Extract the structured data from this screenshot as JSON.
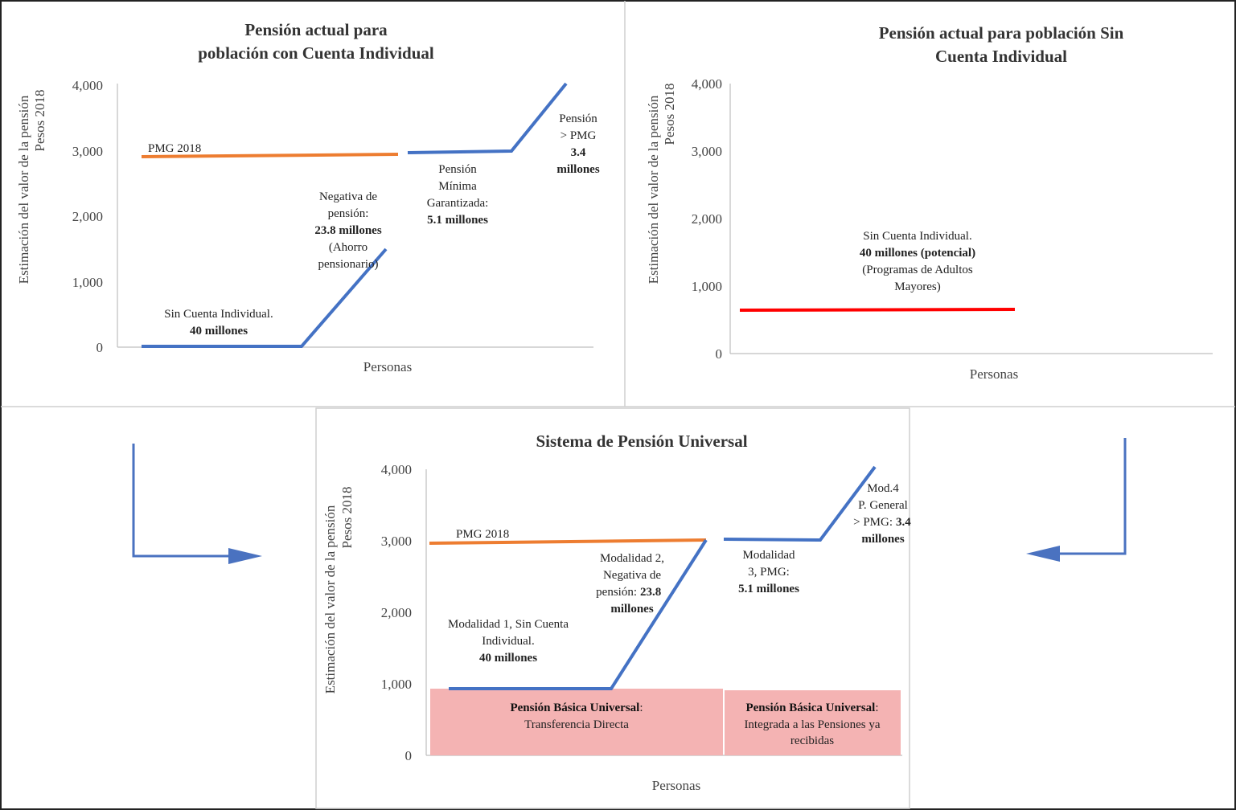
{
  "chart_data": [
    {
      "type": "line",
      "title_lines": [
        "Pensión actual para",
        "población con Cuenta Individual"
      ],
      "ylabel_lines": [
        "Estimación del valor de la pensión",
        "Pesos 2018"
      ],
      "xlabel": "Personas",
      "ylim": [
        0,
        4000
      ],
      "y_ticks": [
        "0",
        "1,000",
        "2,000",
        "3,000",
        "4,000"
      ],
      "series": [
        {
          "name": "PMG 2018",
          "color": "#ED7D31",
          "points": [
            [
              0.05,
              2900
            ],
            [
              0.58,
              2940
            ]
          ]
        },
        {
          "color": "#4472C4",
          "points": [
            [
              0.05,
              0
            ],
            [
              0.39,
              0
            ],
            [
              0.56,
              1500
            ]
          ]
        },
        {
          "color": "#4472C4",
          "points": [
            [
              0.6,
              2960
            ],
            [
              0.82,
              2980
            ],
            [
              0.95,
              4000
            ]
          ]
        }
      ],
      "annotations": [
        {
          "lines": [
            "Sin Cuenta Individual."
          ],
          "bold": [
            "40 millones"
          ]
        },
        {
          "lines": [
            "Negativa de",
            "pensión:"
          ],
          "bold": [
            "23.8 millones"
          ],
          "after": [
            "(Ahorro",
            "pensionario)"
          ]
        },
        {
          "lines": [
            "Pensión",
            "Mínima",
            "Garantizada:"
          ],
          "bold": [
            "5.1 millones"
          ]
        },
        {
          "lines": [
            "Pensión",
            "> PMG"
          ],
          "bold": [
            "3.4",
            "millones"
          ]
        }
      ]
    },
    {
      "type": "line",
      "title_lines": [
        "Pensión actual para población Sin",
        "Cuenta Individual"
      ],
      "ylabel_lines": [
        "Estimación del valor de la pensión",
        "Pesos 2018"
      ],
      "xlabel": "Personas",
      "ylim": [
        0,
        4000
      ],
      "y_ticks": [
        "0",
        "1,000",
        "2,000",
        "3,000",
        "4,000"
      ],
      "series": [
        {
          "color": "#FF0000",
          "points": [
            [
              0.02,
              650
            ],
            [
              0.58,
              650
            ]
          ]
        }
      ],
      "annotations": [
        {
          "lines": [
            "Sin Cuenta Individual."
          ],
          "bold": [
            "40 millones (potencial)"
          ],
          "after": [
            "(Programas  de Adultos",
            "Mayores)"
          ]
        }
      ]
    },
    {
      "type": "line",
      "title_lines": [
        "Sistema de Pensión Universal"
      ],
      "ylabel_lines": [
        "Estimación del valor de la pensión",
        "Pesos 2018"
      ],
      "xlabel": "Personas",
      "ylim": [
        0,
        4000
      ],
      "y_ticks": [
        "0",
        "1,000",
        "2,000",
        "3,000",
        "4,000"
      ],
      "series": [
        {
          "name": "PMG 2018",
          "color": "#ED7D31",
          "points": [
            [
              0.01,
              2960
            ],
            [
              0.6,
              3000
            ]
          ]
        },
        {
          "color": "#4472C4",
          "points": [
            [
              0.04,
              930
            ],
            [
              0.39,
              930
            ],
            [
              0.6,
              3000
            ]
          ]
        },
        {
          "color": "#4472C4",
          "points": [
            [
              0.63,
              3020
            ],
            [
              0.8,
              3020
            ],
            [
              0.93,
              4000
            ]
          ]
        }
      ],
      "bands": [
        {
          "bold": "Pensión Básica Universal",
          "text": [
            "Transferencia Directa"
          ],
          "color": "#F4B3B3",
          "x": [
            0.0,
            0.6
          ],
          "y": [
            0,
            930
          ]
        },
        {
          "bold": "Pensión Básica Universal",
          "text": [
            "Integrada a las Pensiones ya",
            "recibidas"
          ],
          "color": "#F4B3B3",
          "x": [
            0.61,
            0.98
          ],
          "y": [
            0,
            930
          ]
        }
      ],
      "annotations": [
        {
          "lines": [
            "Modalidad 1, Sin Cuenta",
            "Individual."
          ],
          "bold": [
            "40 millones"
          ]
        },
        {
          "lines": [
            "Modalidad 2,",
            "Negativa de",
            "pensión:"
          ],
          "bold": [
            "23.8",
            "millones"
          ]
        },
        {
          "lines": [
            "Modalidad",
            "3, PMG:"
          ],
          "bold": [
            "5.1 millones"
          ]
        },
        {
          "lines": [
            "Mod.4",
            "P. General",
            "> PMG:"
          ],
          "bold": [
            "3.4",
            "millones"
          ]
        }
      ]
    }
  ],
  "arrows": {
    "color": "#4A72C0"
  }
}
